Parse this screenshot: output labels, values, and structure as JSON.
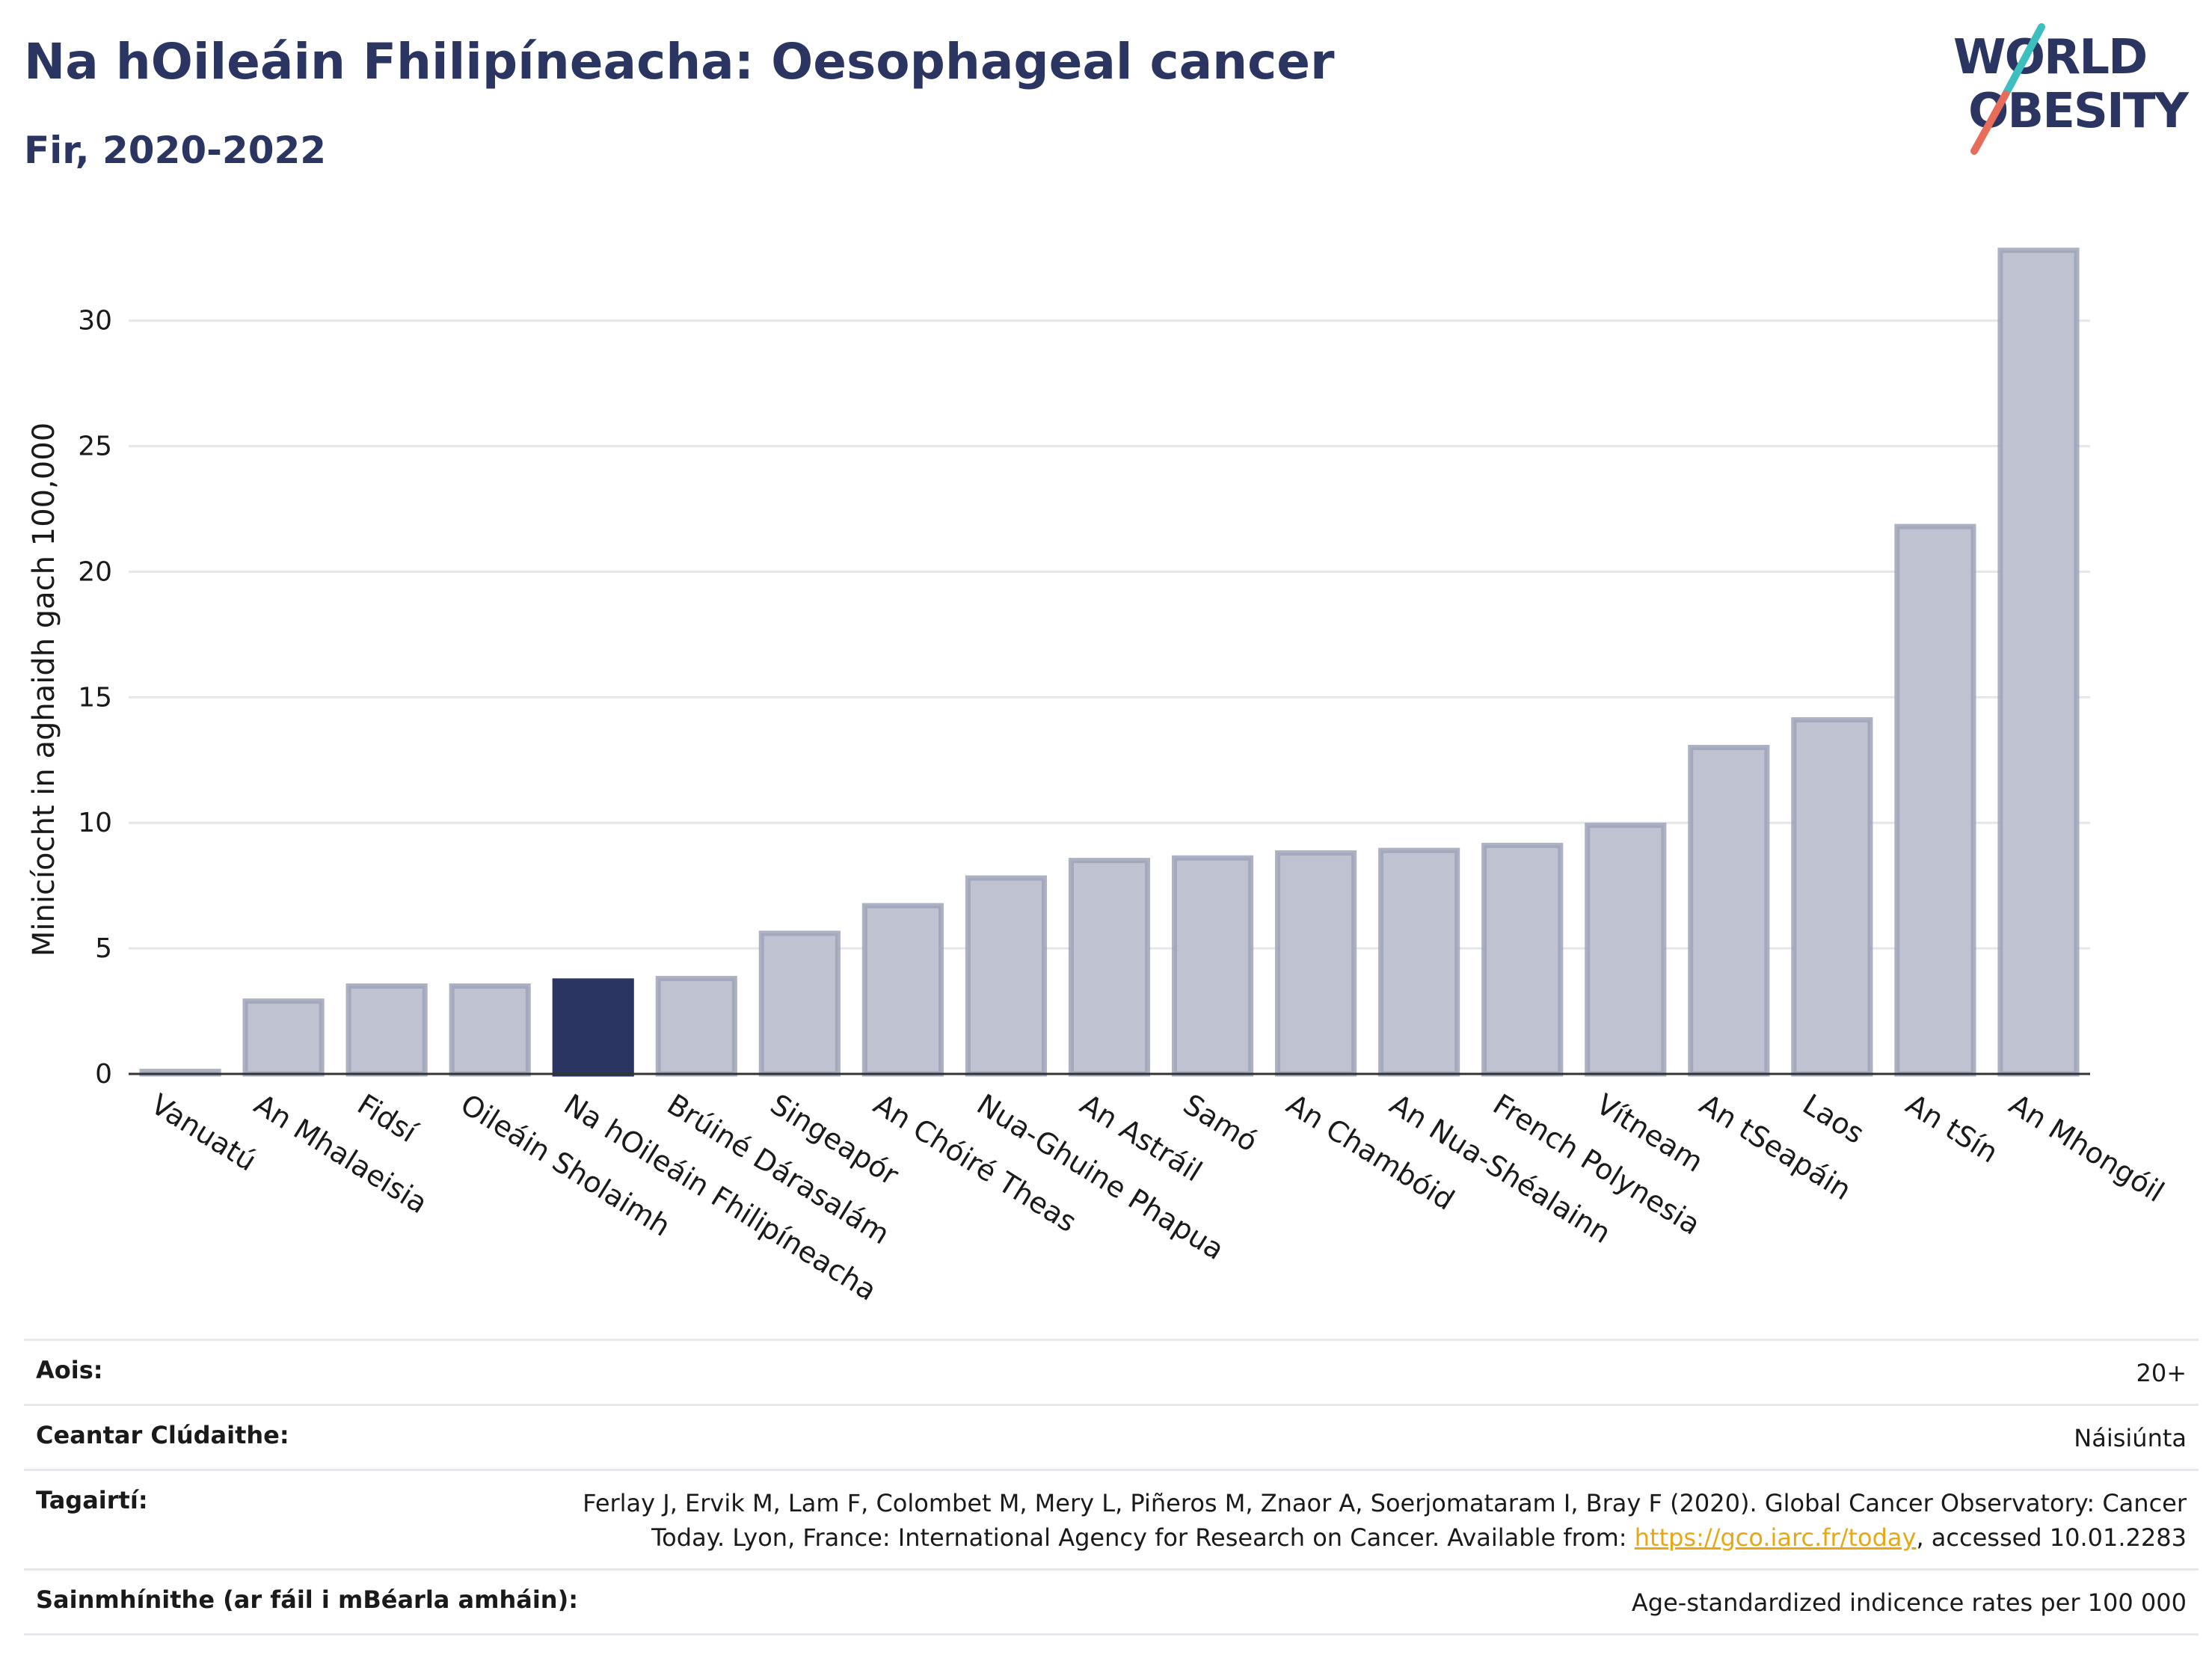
{
  "header": {
    "title": "Na hOileáin Fhilipíneacha: Oesophageal cancer",
    "subtitle": "Fir, 2020-2022"
  },
  "logo": {
    "line1": "WORLD",
    "line2": "OBESITY"
  },
  "colors": {
    "highlight": "#2a3562",
    "bar": "#bfc3d1",
    "bar_border": "#9ea3b8",
    "title": "#2a3562",
    "link": "#e8a715",
    "logo_teal": "#3dbfbf",
    "logo_red": "#e86c5a"
  },
  "chart_data": {
    "type": "bar",
    "ylabel": "Minicíocht in aghaidh gach 100,000",
    "xlabel": "",
    "ylim": [
      0,
      33
    ],
    "yticks": [
      0,
      5,
      10,
      15,
      20,
      25,
      30
    ],
    "grid": true,
    "highlight_category": "Na hOileáin Fhilipíneacha",
    "categories": [
      "Vanuatú",
      "An Mhalaeisia",
      "Fidsí",
      "Oileáin Sholaimh",
      "Na hOileáin Fhilipíneacha",
      "Brúiné Dárasalám",
      "Singeapór",
      "An Chóiré Theas",
      "Nua-Ghuine Phapua",
      "An Astráil",
      "Samó",
      "An Chambóid",
      "An Nua-Shéalainn",
      "French Polynesia",
      "Vítneam",
      "An tSeapáin",
      "Laos",
      "An tSín",
      "An Mhongóil"
    ],
    "values": [
      0.1,
      2.9,
      3.5,
      3.5,
      3.7,
      3.8,
      5.6,
      6.7,
      7.8,
      8.5,
      8.6,
      8.8,
      8.9,
      9.1,
      9.9,
      13.0,
      14.1,
      21.8,
      32.8
    ]
  },
  "footer": {
    "rows": [
      {
        "label": "Aois:",
        "value": "20+"
      },
      {
        "label": "Ceantar Clúdaithe:",
        "value": "Náisiúnta"
      },
      {
        "label": "Tagairtí:",
        "value_line1": "Ferlay J, Ervik M, Lam F, Colombet M, Mery L, Piñeros M, Znaor A, Soerjomataram I, Bray F (2020). Global Cancer Observatory: Cancer",
        "value_line2_pre": "Today. Lyon, France: International Agency for Research on Cancer. Available from: ",
        "link": "https://gco.iarc.fr/today",
        "value_line2_post": ", accessed 10.01.2283"
      },
      {
        "label": "Sainmhínithe (ar fáil i mBéarla amháin):",
        "value": "Age-standardized indicence rates per 100 000"
      }
    ]
  }
}
